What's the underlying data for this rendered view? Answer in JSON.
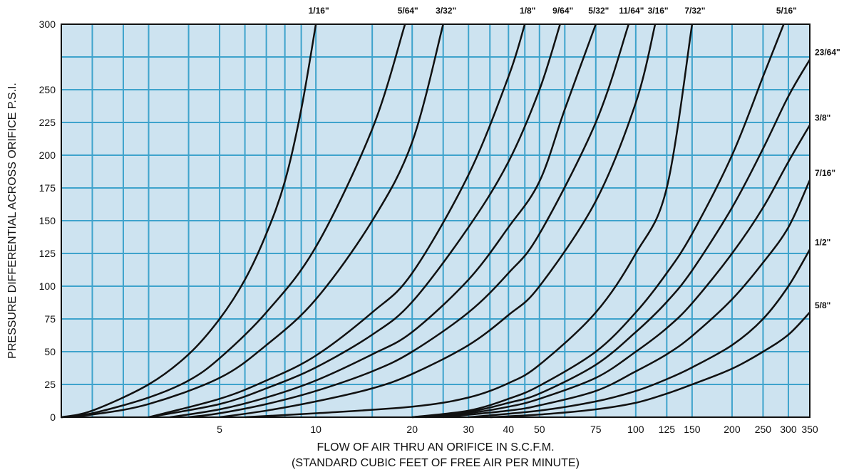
{
  "chart_data": {
    "type": "line",
    "xlabel": "FLOW OF AIR THRU AN ORIFICE IN S.C.F.M.",
    "xlabel_sub": "(STANDARD CUBIC FEET OF FREE AIR PER MINUTE)",
    "ylabel": "PRESSURE DIFFERENTIAL ACROSS ORIFICE P.S.I.",
    "x_scale": "log",
    "xlim": [
      1.6,
      350
    ],
    "ylim": [
      0,
      300
    ],
    "y_ticks": [
      0,
      25,
      50,
      75,
      100,
      125,
      150,
      175,
      200,
      225,
      250,
      275,
      300
    ],
    "y_tick_labels": [
      "0",
      "25",
      "50",
      "75",
      "100",
      "125",
      "150",
      "175",
      "200",
      "225",
      "250",
      "",
      "300"
    ],
    "x_tick_labels": [
      {
        "value": 5,
        "label": "5"
      },
      {
        "value": 10,
        "label": "10"
      },
      {
        "value": 20,
        "label": "20"
      },
      {
        "value": 30,
        "label": "30"
      },
      {
        "value": 40,
        "label": "40"
      },
      {
        "value": 50,
        "label": "50"
      },
      {
        "value": 75,
        "label": "75"
      },
      {
        "value": 100,
        "label": "100"
      },
      {
        "value": 125,
        "label": "125"
      },
      {
        "value": 150,
        "label": "150"
      },
      {
        "value": 200,
        "label": "200"
      },
      {
        "value": 250,
        "label": "250"
      },
      {
        "value": 300,
        "label": "300"
      },
      {
        "value": 350,
        "label": "350"
      }
    ],
    "x_gridlines": [
      2,
      2.5,
      3,
      4,
      5,
      6,
      7,
      8,
      9,
      10,
      15,
      20,
      25,
      30,
      35,
      40,
      45,
      50,
      60,
      75,
      100,
      125,
      150,
      200,
      250,
      300
    ],
    "grid": true,
    "colors": {
      "background": "#cde3f0",
      "grid": "#3ea3cc",
      "curve": "#111111"
    },
    "series": [
      {
        "name": "1/16\"",
        "label_pos": "top",
        "points": [
          [
            1.6,
            0
          ],
          [
            2,
            5
          ],
          [
            3,
            25
          ],
          [
            4,
            48
          ],
          [
            5,
            75
          ],
          [
            6,
            105
          ],
          [
            7,
            140
          ],
          [
            8,
            180
          ],
          [
            9,
            235
          ],
          [
            10,
            300
          ]
        ]
      },
      {
        "name": "5/64\"",
        "label_pos": "top",
        "points": [
          [
            1.6,
            0
          ],
          [
            2,
            3
          ],
          [
            3,
            15
          ],
          [
            4,
            28
          ],
          [
            5,
            45
          ],
          [
            7,
            80
          ],
          [
            10,
            130
          ],
          [
            15,
            220
          ],
          [
            19,
            300
          ]
        ]
      },
      {
        "name": "3/32\"",
        "label_pos": "top",
        "points": [
          [
            1.6,
            0
          ],
          [
            2,
            2
          ],
          [
            3,
            10
          ],
          [
            5,
            30
          ],
          [
            7,
            55
          ],
          [
            10,
            90
          ],
          [
            15,
            150
          ],
          [
            20,
            210
          ],
          [
            25,
            300
          ]
        ]
      },
      {
        "name": "1/8\"",
        "label_pos": "top",
        "points": [
          [
            3,
            0
          ],
          [
            5,
            14
          ],
          [
            7,
            28
          ],
          [
            10,
            47
          ],
          [
            15,
            80
          ],
          [
            20,
            110
          ],
          [
            30,
            185
          ],
          [
            40,
            260
          ],
          [
            45,
            300
          ]
        ]
      },
      {
        "name": "9/64\"",
        "label_pos": "top",
        "points": [
          [
            3,
            0
          ],
          [
            5,
            10
          ],
          [
            7,
            22
          ],
          [
            10,
            38
          ],
          [
            15,
            63
          ],
          [
            20,
            88
          ],
          [
            30,
            145
          ],
          [
            40,
            195
          ],
          [
            50,
            250
          ],
          [
            58,
            300
          ]
        ]
      },
      {
        "name": "5/32\"",
        "label_pos": "top",
        "points": [
          [
            3.5,
            0
          ],
          [
            5,
            6
          ],
          [
            7,
            15
          ],
          [
            10,
            28
          ],
          [
            15,
            48
          ],
          [
            20,
            65
          ],
          [
            30,
            105
          ],
          [
            40,
            145
          ],
          [
            50,
            180
          ],
          [
            60,
            235
          ],
          [
            75,
            300
          ]
        ]
      },
      {
        "name": "11/64\"",
        "label_pos": "top",
        "points": [
          [
            4,
            0
          ],
          [
            5,
            3
          ],
          [
            7,
            10
          ],
          [
            10,
            20
          ],
          [
            15,
            35
          ],
          [
            20,
            50
          ],
          [
            30,
            80
          ],
          [
            40,
            110
          ],
          [
            50,
            140
          ],
          [
            75,
            225
          ],
          [
            95,
            300
          ]
        ]
      },
      {
        "name": "3/16\"",
        "label_pos": "top",
        "points": [
          [
            5,
            0
          ],
          [
            7,
            5
          ],
          [
            10,
            12
          ],
          [
            15,
            22
          ],
          [
            20,
            33
          ],
          [
            30,
            55
          ],
          [
            40,
            78
          ],
          [
            50,
            100
          ],
          [
            75,
            165
          ],
          [
            100,
            240
          ],
          [
            115,
            300
          ]
        ]
      },
      {
        "name": "7/32\"",
        "label_pos": "top",
        "points": [
          [
            6,
            0
          ],
          [
            10,
            3
          ],
          [
            20,
            8
          ],
          [
            30,
            15
          ],
          [
            40,
            26
          ],
          [
            50,
            40
          ],
          [
            75,
            80
          ],
          [
            100,
            125
          ],
          [
            125,
            175
          ],
          [
            150,
            300
          ]
        ]
      },
      {
        "name": "5/16\"",
        "label_pos": "top",
        "points": [
          [
            20,
            0
          ],
          [
            30,
            5
          ],
          [
            40,
            14
          ],
          [
            50,
            24
          ],
          [
            75,
            50
          ],
          [
            100,
            80
          ],
          [
            125,
            110
          ],
          [
            150,
            140
          ],
          [
            200,
            200
          ],
          [
            250,
            260
          ],
          [
            290,
            300
          ]
        ]
      },
      {
        "name": "23/64\"",
        "label_pos": "right",
        "points": [
          [
            20,
            0
          ],
          [
            30,
            4
          ],
          [
            40,
            11
          ],
          [
            50,
            18
          ],
          [
            75,
            40
          ],
          [
            100,
            65
          ],
          [
            125,
            88
          ],
          [
            150,
            112
          ],
          [
            200,
            160
          ],
          [
            250,
            205
          ],
          [
            300,
            245
          ],
          [
            350,
            273
          ]
        ]
      },
      {
        "name": "3/8\"",
        "label_pos": "right",
        "points": [
          [
            22,
            0
          ],
          [
            30,
            3
          ],
          [
            40,
            8
          ],
          [
            50,
            14
          ],
          [
            75,
            30
          ],
          [
            100,
            50
          ],
          [
            125,
            68
          ],
          [
            150,
            87
          ],
          [
            200,
            125
          ],
          [
            250,
            160
          ],
          [
            300,
            195
          ],
          [
            350,
            223
          ]
        ]
      },
      {
        "name": "7/16\"",
        "label_pos": "right",
        "points": [
          [
            25,
            0
          ],
          [
            40,
            5
          ],
          [
            50,
            9
          ],
          [
            75,
            20
          ],
          [
            100,
            35
          ],
          [
            125,
            48
          ],
          [
            150,
            62
          ],
          [
            200,
            90
          ],
          [
            250,
            118
          ],
          [
            300,
            145
          ],
          [
            350,
            181
          ]
        ]
      },
      {
        "name": "1/2\"",
        "label_pos": "right",
        "points": [
          [
            30,
            0
          ],
          [
            50,
            5
          ],
          [
            75,
            12
          ],
          [
            100,
            20
          ],
          [
            125,
            29
          ],
          [
            150,
            38
          ],
          [
            200,
            55
          ],
          [
            250,
            75
          ],
          [
            300,
            100
          ],
          [
            350,
            128
          ]
        ]
      },
      {
        "name": "5/8\"",
        "label_pos": "right",
        "points": [
          [
            35,
            0
          ],
          [
            50,
            2
          ],
          [
            75,
            6
          ],
          [
            100,
            11
          ],
          [
            125,
            18
          ],
          [
            150,
            25
          ],
          [
            200,
            37
          ],
          [
            250,
            50
          ],
          [
            300,
            63
          ],
          [
            350,
            80
          ]
        ]
      }
    ]
  }
}
